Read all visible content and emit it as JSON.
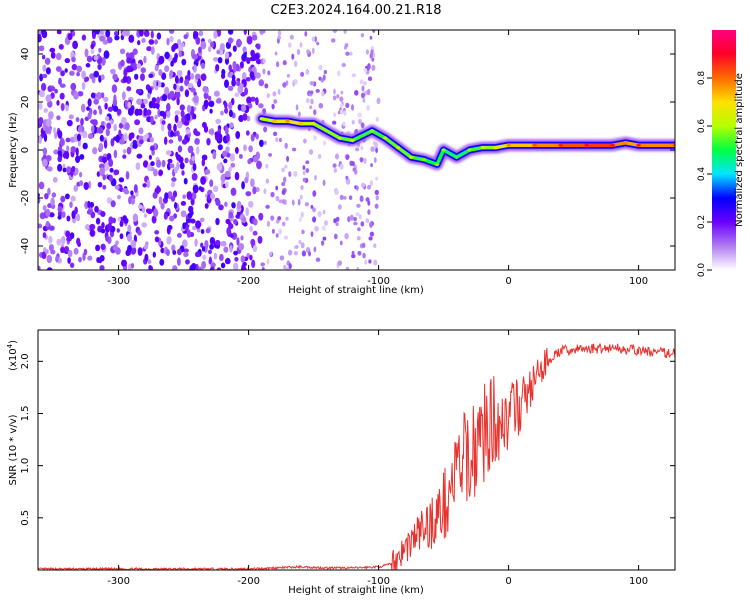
{
  "title": "C2E3.2024.164.00.21.R18",
  "colors": {
    "snr_line": "#e8322d",
    "axis": "#000000",
    "grid_ticks": "#000000",
    "speckle": "#8a2be2"
  },
  "chart_data": [
    {
      "type": "heatmap",
      "title": "C2E3.2024.164.00.21.R18",
      "xlabel": "Height of straight line (km)",
      "ylabel": "Frequency (Hz)",
      "xlim": [
        -362,
        128
      ],
      "ylim": [
        -50,
        50
      ],
      "xticks": [
        -300,
        -200,
        -100,
        0,
        100
      ],
      "xtick_labels": [
        "-300",
        "-200",
        "-100",
        "0",
        "100"
      ],
      "yticks": [
        -40,
        -20,
        0,
        20,
        40
      ],
      "ytick_labels": [
        "-40",
        "-20",
        "0",
        "20",
        "40"
      ],
      "colorbar": {
        "label": "Normalized spectral amplitude",
        "range": [
          0.0,
          1.0
        ],
        "ticks": [
          0.0,
          0.2,
          0.4,
          0.6,
          0.8
        ],
        "tick_labels": [
          "0.0",
          "0.2",
          "0.4",
          "0.6",
          "0.8"
        ],
        "stops": [
          "#ffffff",
          "#b07cf2",
          "#6a00ff",
          "#0000ff",
          "#00e5ff",
          "#00ff40",
          "#b5ff00",
          "#ffe000",
          "#ff6a00",
          "#ff0028",
          "#ff0080"
        ]
      },
      "noise_region_km": [
        -362,
        -190
      ],
      "noise_sparse_bands_km": [
        [
          -190,
          -140
        ],
        [
          -135,
          -100
        ]
      ],
      "ridge": [
        {
          "x": -190,
          "y": 13,
          "a": 0.55
        },
        {
          "x": -180,
          "y": 12,
          "a": 0.65
        },
        {
          "x": -170,
          "y": 12,
          "a": 0.7
        },
        {
          "x": -160,
          "y": 11,
          "a": 0.65
        },
        {
          "x": -150,
          "y": 11,
          "a": 0.6
        },
        {
          "x": -130,
          "y": 5,
          "a": 0.55
        },
        {
          "x": -120,
          "y": 4,
          "a": 0.55
        },
        {
          "x": -105,
          "y": 8,
          "a": 0.5
        },
        {
          "x": -95,
          "y": 5,
          "a": 0.55
        },
        {
          "x": -85,
          "y": 1,
          "a": 0.55
        },
        {
          "x": -75,
          "y": -3,
          "a": 0.55
        },
        {
          "x": -65,
          "y": -4,
          "a": 0.5
        },
        {
          "x": -55,
          "y": -6,
          "a": 0.5
        },
        {
          "x": -50,
          "y": 0,
          "a": 0.5
        },
        {
          "x": -40,
          "y": -3,
          "a": 0.45
        },
        {
          "x": -30,
          "y": 0,
          "a": 0.5
        },
        {
          "x": -20,
          "y": 1,
          "a": 0.55
        },
        {
          "x": -10,
          "y": 1,
          "a": 0.6
        },
        {
          "x": 0,
          "y": 2,
          "a": 0.7
        },
        {
          "x": 20,
          "y": 2,
          "a": 0.75
        },
        {
          "x": 40,
          "y": 2,
          "a": 0.8
        },
        {
          "x": 60,
          "y": 2,
          "a": 0.85
        },
        {
          "x": 80,
          "y": 2,
          "a": 0.85
        },
        {
          "x": 90,
          "y": 3,
          "a": 0.7
        },
        {
          "x": 100,
          "y": 2,
          "a": 0.8
        },
        {
          "x": 128,
          "y": 2,
          "a": 0.75
        }
      ]
    },
    {
      "type": "line",
      "xlabel": "Height of straight line (km)",
      "ylabel": "SNR (10 * v/v)",
      "y_multiplier_label": "(x10",
      "y_multiplier_exponent": "4",
      "y_multiplier_close": ")",
      "xlim": [
        -362,
        128
      ],
      "ylim": [
        0,
        2.3
      ],
      "xticks": [
        -300,
        -200,
        -100,
        0,
        100
      ],
      "xtick_labels": [
        "-300",
        "-200",
        "-100",
        "0",
        "100"
      ],
      "yticks": [
        0.5,
        1.0,
        1.5,
        2.0
      ],
      "ytick_labels": [
        "0.5",
        "1.0",
        "1.5",
        "2.0"
      ],
      "series": [
        {
          "x": [
            -362,
            -300,
            -250,
            -200,
            -180,
            -160,
            -140,
            -120,
            -100,
            -90,
            -80,
            -70,
            -60,
            -50,
            -40,
            -30,
            -20,
            -10,
            0,
            10,
            20,
            30,
            40,
            60,
            80,
            100,
            120,
            128
          ],
          "values": [
            0.01,
            0.01,
            0.01,
            0.01,
            0.02,
            0.03,
            0.02,
            0.02,
            0.03,
            0.06,
            0.2,
            0.35,
            0.45,
            0.6,
            0.95,
            1.1,
            1.3,
            1.45,
            1.45,
            1.6,
            1.8,
            2.0,
            2.1,
            2.12,
            2.13,
            2.1,
            2.08,
            2.08
          ]
        }
      ]
    }
  ]
}
